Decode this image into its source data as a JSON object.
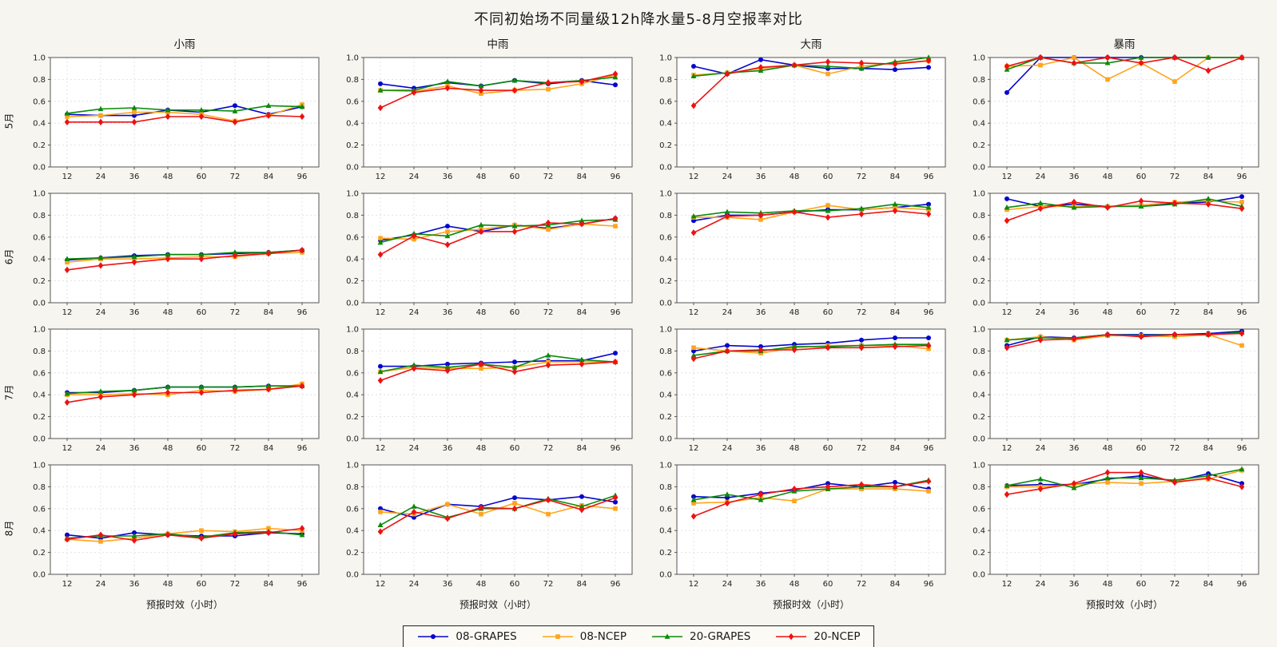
{
  "chart_data": {
    "type": "line",
    "title": "不同初始场不同量级12h降水量5-8月空报率对比",
    "xlabel": "预报时效（小时）",
    "x": [
      12,
      24,
      36,
      48,
      60,
      72,
      84,
      96
    ],
    "ylim": [
      0.0,
      1.0
    ],
    "yticks": [
      0.0,
      0.2,
      0.4,
      0.6,
      0.8,
      1.0
    ],
    "grid": true,
    "legend_position": "bottom",
    "rows": [
      "5月",
      "6月",
      "7月",
      "8月"
    ],
    "cols": [
      "小雨",
      "中雨",
      "大雨",
      "暴雨"
    ],
    "series_meta": [
      {
        "name": "08-GRAPES",
        "color": "#0505cd",
        "marker": "circle"
      },
      {
        "name": "08-NCEP",
        "color": "#ffa41c",
        "marker": "square"
      },
      {
        "name": "20-GRAPES",
        "color": "#0a8a0a",
        "marker": "triangle"
      },
      {
        "name": "20-NCEP",
        "color": "#ee1111",
        "marker": "diamond"
      }
    ],
    "subplots": [
      {
        "row": "5月",
        "col": "小雨",
        "series": {
          "08-GRAPES": [
            0.48,
            0.47,
            0.47,
            0.52,
            0.5,
            0.56,
            0.48,
            0.55
          ],
          "08-NCEP": [
            0.46,
            0.47,
            0.5,
            0.5,
            0.48,
            0.42,
            0.47,
            0.57
          ],
          "20-GRAPES": [
            0.49,
            0.53,
            0.54,
            0.52,
            0.52,
            0.51,
            0.56,
            0.55
          ],
          "20-NCEP": [
            0.41,
            0.41,
            0.41,
            0.46,
            0.46,
            0.41,
            0.47,
            0.46
          ]
        }
      },
      {
        "row": "5月",
        "col": "中雨",
        "series": {
          "08-GRAPES": [
            0.76,
            0.72,
            0.77,
            0.74,
            0.79,
            0.76,
            0.79,
            0.75
          ],
          "08-NCEP": [
            0.7,
            0.69,
            0.74,
            0.67,
            0.7,
            0.71,
            0.76,
            0.84
          ],
          "20-GRAPES": [
            0.7,
            0.7,
            0.78,
            0.74,
            0.79,
            0.77,
            0.79,
            0.82
          ],
          "20-NCEP": [
            0.54,
            0.68,
            0.72,
            0.7,
            0.7,
            0.77,
            0.78,
            0.85
          ]
        }
      },
      {
        "row": "5月",
        "col": "大雨",
        "series": {
          "08-GRAPES": [
            0.92,
            0.85,
            0.98,
            0.93,
            0.9,
            0.9,
            0.89,
            0.91
          ],
          "08-NCEP": [
            0.84,
            0.86,
            0.9,
            0.93,
            0.85,
            0.92,
            0.95,
            0.97
          ],
          "20-GRAPES": [
            0.83,
            0.86,
            0.88,
            0.93,
            0.92,
            0.9,
            0.96,
            1.0
          ],
          "20-NCEP": [
            0.56,
            0.85,
            0.91,
            0.93,
            0.96,
            0.95,
            0.94,
            0.97
          ]
        }
      },
      {
        "row": "5月",
        "col": "暴雨",
        "series": {
          "08-GRAPES": [
            0.68,
            1.0,
            1.0,
            1.0,
            1.0,
            1.0,
            1.0,
            1.0
          ],
          "08-NCEP": [
            0.92,
            0.93,
            1.0,
            0.8,
            0.95,
            0.78,
            1.0,
            1.0
          ],
          "20-GRAPES": [
            0.89,
            1.0,
            0.95,
            0.95,
            1.0,
            1.0,
            1.0,
            1.0
          ],
          "20-NCEP": [
            0.92,
            1.0,
            0.95,
            1.0,
            0.95,
            1.0,
            0.88,
            1.0
          ]
        }
      },
      {
        "row": "6月",
        "col": "小雨",
        "series": {
          "08-GRAPES": [
            0.39,
            0.41,
            0.43,
            0.44,
            0.44,
            0.45,
            0.46,
            0.48
          ],
          "08-NCEP": [
            0.37,
            0.4,
            0.4,
            0.41,
            0.42,
            0.42,
            0.45,
            0.46
          ],
          "20-GRAPES": [
            0.4,
            0.41,
            0.42,
            0.44,
            0.44,
            0.46,
            0.46,
            0.48
          ],
          "20-NCEP": [
            0.3,
            0.34,
            0.37,
            0.4,
            0.4,
            0.43,
            0.45,
            0.48
          ]
        }
      },
      {
        "row": "6月",
        "col": "中雨",
        "series": {
          "08-GRAPES": [
            0.57,
            0.62,
            0.7,
            0.65,
            0.71,
            0.68,
            0.72,
            0.77
          ],
          "08-NCEP": [
            0.59,
            0.58,
            0.65,
            0.67,
            0.71,
            0.67,
            0.72,
            0.7
          ],
          "20-GRAPES": [
            0.55,
            0.63,
            0.61,
            0.71,
            0.7,
            0.71,
            0.75,
            0.76
          ],
          "20-NCEP": [
            0.44,
            0.61,
            0.53,
            0.65,
            0.65,
            0.73,
            0.72,
            0.77
          ]
        }
      },
      {
        "row": "6月",
        "col": "大雨",
        "series": {
          "08-GRAPES": [
            0.75,
            0.8,
            0.8,
            0.83,
            0.85,
            0.85,
            0.87,
            0.9
          ],
          "08-NCEP": [
            0.78,
            0.78,
            0.76,
            0.83,
            0.89,
            0.85,
            0.87,
            0.85
          ],
          "20-GRAPES": [
            0.79,
            0.83,
            0.82,
            0.84,
            0.84,
            0.86,
            0.9,
            0.87
          ],
          "20-NCEP": [
            0.64,
            0.79,
            0.8,
            0.83,
            0.78,
            0.81,
            0.84,
            0.81
          ]
        }
      },
      {
        "row": "6月",
        "col": "暴雨",
        "series": {
          "08-GRAPES": [
            0.95,
            0.88,
            0.9,
            0.88,
            0.89,
            0.91,
            0.92,
            0.97
          ],
          "08-NCEP": [
            0.85,
            0.88,
            0.88,
            0.88,
            0.89,
            0.92,
            0.93,
            0.92
          ],
          "20-GRAPES": [
            0.87,
            0.91,
            0.87,
            0.88,
            0.88,
            0.9,
            0.95,
            0.88
          ],
          "20-NCEP": [
            0.75,
            0.86,
            0.92,
            0.87,
            0.93,
            0.91,
            0.9,
            0.86
          ]
        }
      },
      {
        "row": "7月",
        "col": "小雨",
        "series": {
          "08-GRAPES": [
            0.42,
            0.42,
            0.44,
            0.47,
            0.47,
            0.47,
            0.48,
            0.48
          ],
          "08-NCEP": [
            0.4,
            0.4,
            0.41,
            0.4,
            0.44,
            0.43,
            0.45,
            0.5
          ],
          "20-GRAPES": [
            0.41,
            0.43,
            0.44,
            0.47,
            0.47,
            0.47,
            0.48,
            0.48
          ],
          "20-NCEP": [
            0.33,
            0.38,
            0.4,
            0.42,
            0.42,
            0.44,
            0.45,
            0.48
          ]
        }
      },
      {
        "row": "7月",
        "col": "中雨",
        "series": {
          "08-GRAPES": [
            0.66,
            0.66,
            0.68,
            0.69,
            0.7,
            0.71,
            0.71,
            0.78
          ],
          "08-NCEP": [
            0.61,
            0.65,
            0.64,
            0.64,
            0.65,
            0.7,
            0.7,
            0.7
          ],
          "20-GRAPES": [
            0.61,
            0.67,
            0.65,
            0.68,
            0.65,
            0.76,
            0.72,
            0.7
          ],
          "20-NCEP": [
            0.53,
            0.64,
            0.62,
            0.68,
            0.61,
            0.67,
            0.68,
            0.7
          ]
        }
      },
      {
        "row": "7月",
        "col": "大雨",
        "series": {
          "08-GRAPES": [
            0.8,
            0.85,
            0.84,
            0.86,
            0.87,
            0.9,
            0.92,
            0.92
          ],
          "08-NCEP": [
            0.83,
            0.8,
            0.78,
            0.83,
            0.85,
            0.85,
            0.85,
            0.82
          ],
          "20-GRAPES": [
            0.76,
            0.8,
            0.8,
            0.84,
            0.84,
            0.85,
            0.86,
            0.86
          ],
          "20-NCEP": [
            0.73,
            0.8,
            0.81,
            0.81,
            0.83,
            0.83,
            0.84,
            0.85
          ]
        }
      },
      {
        "row": "7月",
        "col": "暴雨",
        "series": {
          "08-GRAPES": [
            0.85,
            0.93,
            0.92,
            0.95,
            0.95,
            0.95,
            0.96,
            0.98
          ],
          "08-NCEP": [
            0.9,
            0.93,
            0.9,
            0.94,
            0.94,
            0.93,
            0.95,
            0.85
          ],
          "20-GRAPES": [
            0.9,
            0.92,
            0.92,
            0.95,
            0.94,
            0.95,
            0.95,
            0.97
          ],
          "20-NCEP": [
            0.83,
            0.9,
            0.91,
            0.95,
            0.93,
            0.95,
            0.95,
            0.96
          ]
        }
      },
      {
        "row": "8月",
        "col": "小雨",
        "series": {
          "08-GRAPES": [
            0.36,
            0.33,
            0.38,
            0.36,
            0.35,
            0.35,
            0.38,
            0.37
          ],
          "08-NCEP": [
            0.32,
            0.3,
            0.33,
            0.37,
            0.4,
            0.39,
            0.42,
            0.4
          ],
          "20-GRAPES": [
            0.33,
            0.35,
            0.35,
            0.37,
            0.34,
            0.38,
            0.39,
            0.36
          ],
          "20-NCEP": [
            0.32,
            0.36,
            0.31,
            0.36,
            0.33,
            0.37,
            0.38,
            0.42
          ]
        }
      },
      {
        "row": "8月",
        "col": "中雨",
        "series": {
          "08-GRAPES": [
            0.6,
            0.52,
            0.64,
            0.62,
            0.7,
            0.68,
            0.71,
            0.66
          ],
          "08-NCEP": [
            0.57,
            0.55,
            0.64,
            0.55,
            0.65,
            0.55,
            0.63,
            0.6
          ],
          "20-GRAPES": [
            0.45,
            0.62,
            0.52,
            0.6,
            0.6,
            0.69,
            0.62,
            0.72
          ],
          "20-NCEP": [
            0.39,
            0.57,
            0.51,
            0.61,
            0.6,
            0.68,
            0.59,
            0.7
          ]
        }
      },
      {
        "row": "8月",
        "col": "大雨",
        "series": {
          "08-GRAPES": [
            0.71,
            0.7,
            0.74,
            0.77,
            0.83,
            0.8,
            0.84,
            0.78
          ],
          "08-NCEP": [
            0.65,
            0.66,
            0.7,
            0.67,
            0.78,
            0.78,
            0.78,
            0.76
          ],
          "20-GRAPES": [
            0.68,
            0.73,
            0.68,
            0.76,
            0.78,
            0.8,
            0.8,
            0.86
          ],
          "20-NCEP": [
            0.53,
            0.65,
            0.73,
            0.78,
            0.8,
            0.82,
            0.8,
            0.85
          ]
        }
      },
      {
        "row": "8月",
        "col": "暴雨",
        "series": {
          "08-GRAPES": [
            0.81,
            0.82,
            0.82,
            0.87,
            0.9,
            0.85,
            0.92,
            0.83
          ],
          "08-NCEP": [
            0.8,
            0.8,
            0.82,
            0.84,
            0.83,
            0.85,
            0.87,
            0.95
          ],
          "20-GRAPES": [
            0.81,
            0.87,
            0.79,
            0.88,
            0.88,
            0.86,
            0.9,
            0.96
          ],
          "20-NCEP": [
            0.73,
            0.78,
            0.83,
            0.93,
            0.93,
            0.84,
            0.88,
            0.8
          ]
        }
      }
    ],
    "colors": {
      "figure_background": "#f7f5ef",
      "plot_background": "#ffffff",
      "gridline": "#dcdcdc",
      "axis": "#555555"
    }
  }
}
